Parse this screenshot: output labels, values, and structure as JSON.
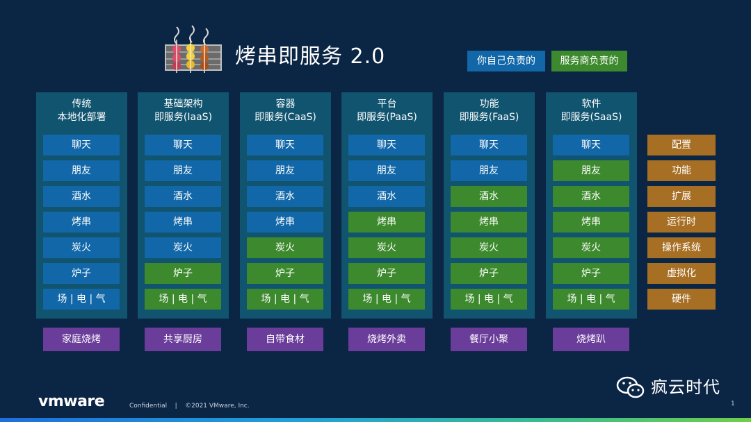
{
  "title": "烤串即服务 2.0",
  "legend": {
    "you": "你自己负责的",
    "provider": "服务商负责的"
  },
  "colors": {
    "background": "#0b2545",
    "column": "#10546f",
    "you": "#1167a8",
    "provider": "#3d8a2e",
    "layer": "#a76f24",
    "scenario": "#6a3d9a"
  },
  "columns": [
    {
      "heading": [
        "传统",
        "本地化部署"
      ],
      "cells": [
        {
          "label": "聊天",
          "owner": "you"
        },
        {
          "label": "朋友",
          "owner": "you"
        },
        {
          "label": "酒水",
          "owner": "you"
        },
        {
          "label": "烤串",
          "owner": "you"
        },
        {
          "label": "炭火",
          "owner": "you"
        },
        {
          "label": "炉子",
          "owner": "you"
        },
        {
          "label": "场 | 电 | 气",
          "owner": "you"
        }
      ],
      "scenario": "家庭烧烤"
    },
    {
      "heading": [
        "基础架构",
        "即服务(IaaS)"
      ],
      "cells": [
        {
          "label": "聊天",
          "owner": "you"
        },
        {
          "label": "朋友",
          "owner": "you"
        },
        {
          "label": "酒水",
          "owner": "you"
        },
        {
          "label": "烤串",
          "owner": "you"
        },
        {
          "label": "炭火",
          "owner": "you"
        },
        {
          "label": "炉子",
          "owner": "provider"
        },
        {
          "label": "场 | 电 | 气",
          "owner": "provider"
        }
      ],
      "scenario": "共享厨房"
    },
    {
      "heading": [
        "容器",
        "即服务(CaaS)"
      ],
      "cells": [
        {
          "label": "聊天",
          "owner": "you"
        },
        {
          "label": "朋友",
          "owner": "you"
        },
        {
          "label": "酒水",
          "owner": "you"
        },
        {
          "label": "烤串",
          "owner": "you"
        },
        {
          "label": "炭火",
          "owner": "provider"
        },
        {
          "label": "炉子",
          "owner": "provider"
        },
        {
          "label": "场 | 电 | 气",
          "owner": "provider"
        }
      ],
      "scenario": "自带食材"
    },
    {
      "heading": [
        "平台",
        "即服务(PaaS)"
      ],
      "cells": [
        {
          "label": "聊天",
          "owner": "you"
        },
        {
          "label": "朋友",
          "owner": "you"
        },
        {
          "label": "酒水",
          "owner": "you"
        },
        {
          "label": "烤串",
          "owner": "provider"
        },
        {
          "label": "炭火",
          "owner": "provider"
        },
        {
          "label": "炉子",
          "owner": "provider"
        },
        {
          "label": "场 | 电 | 气",
          "owner": "provider"
        }
      ],
      "scenario": "烧烤外卖"
    },
    {
      "heading": [
        "功能",
        "即服务(FaaS)"
      ],
      "cells": [
        {
          "label": "聊天",
          "owner": "you"
        },
        {
          "label": "朋友",
          "owner": "you"
        },
        {
          "label": "酒水",
          "owner": "provider"
        },
        {
          "label": "烤串",
          "owner": "provider"
        },
        {
          "label": "炭火",
          "owner": "provider"
        },
        {
          "label": "炉子",
          "owner": "provider"
        },
        {
          "label": "场 | 电 | 气",
          "owner": "provider"
        }
      ],
      "scenario": "餐厅小聚"
    },
    {
      "heading": [
        "软件",
        "即服务(SaaS)"
      ],
      "cells": [
        {
          "label": "聊天",
          "owner": "you"
        },
        {
          "label": "朋友",
          "owner": "provider"
        },
        {
          "label": "酒水",
          "owner": "provider"
        },
        {
          "label": "烤串",
          "owner": "provider"
        },
        {
          "label": "炭火",
          "owner": "provider"
        },
        {
          "label": "炉子",
          "owner": "provider"
        },
        {
          "label": "场 | 电 | 气",
          "owner": "provider"
        }
      ],
      "scenario": "烧烤趴"
    }
  ],
  "layers": [
    "配置",
    "功能",
    "扩展",
    "运行时",
    "操作系统",
    "虚拟化",
    "硬件"
  ],
  "footer": {
    "brand": "vmware",
    "confidential": "Confidential",
    "copyright": "©2021 VMware, Inc.",
    "page": "1"
  },
  "watermark": "疯云时代"
}
